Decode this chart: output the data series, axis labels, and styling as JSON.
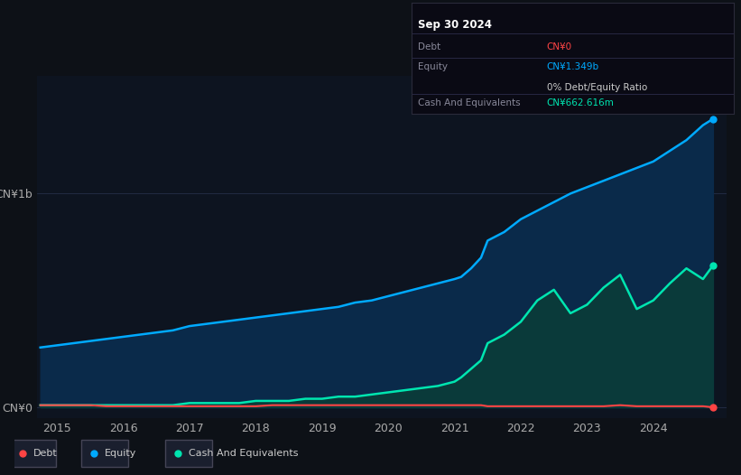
{
  "bg_color": "#0d1117",
  "plot_bg_color": "#0d1420",
  "title_text": "Sep 30 2024",
  "ylabel_top": "CN¥1b",
  "ylabel_bottom": "CN¥0",
  "x_ticks": [
    2015,
    2016,
    2017,
    2018,
    2019,
    2020,
    2021,
    2022,
    2023,
    2024
  ],
  "debt_color": "#ff4444",
  "equity_color": "#00aaff",
  "cash_color": "#00e5b0",
  "equity_fill_color": "#0a2a4a",
  "cash_fill_color": "#0a3a3a",
  "legend_labels": [
    "Debt",
    "Equity",
    "Cash And Equivalents"
  ],
  "tooltip": {
    "title": "Sep 30 2024",
    "debt_label": "Debt",
    "debt_value": "CN¥0",
    "equity_label": "Equity",
    "equity_value": "CN¥1.349b",
    "ratio_value": "0% Debt/Equity Ratio",
    "cash_label": "Cash And Equivalents",
    "cash_value": "CN¥662.616m"
  },
  "years": [
    2014.75,
    2015.0,
    2015.25,
    2015.5,
    2015.75,
    2016.0,
    2016.25,
    2016.5,
    2016.75,
    2017.0,
    2017.25,
    2017.5,
    2017.75,
    2018.0,
    2018.25,
    2018.5,
    2018.75,
    2019.0,
    2019.25,
    2019.5,
    2019.75,
    2020.0,
    2020.25,
    2020.5,
    2020.75,
    2021.0,
    2021.1,
    2021.25,
    2021.4,
    2021.5,
    2021.75,
    2022.0,
    2022.25,
    2022.5,
    2022.75,
    2023.0,
    2023.25,
    2023.5,
    2023.75,
    2024.0,
    2024.25,
    2024.5,
    2024.75,
    2024.9
  ],
  "equity": [
    0.28,
    0.29,
    0.3,
    0.31,
    0.32,
    0.33,
    0.34,
    0.35,
    0.36,
    0.38,
    0.39,
    0.4,
    0.41,
    0.42,
    0.43,
    0.44,
    0.45,
    0.46,
    0.47,
    0.49,
    0.5,
    0.52,
    0.54,
    0.56,
    0.58,
    0.6,
    0.61,
    0.65,
    0.7,
    0.78,
    0.82,
    0.88,
    0.92,
    0.96,
    1.0,
    1.03,
    1.06,
    1.09,
    1.12,
    1.15,
    1.2,
    1.25,
    1.32,
    1.349
  ],
  "cash": [
    0.01,
    0.01,
    0.01,
    0.01,
    0.01,
    0.01,
    0.01,
    0.01,
    0.01,
    0.02,
    0.02,
    0.02,
    0.02,
    0.03,
    0.03,
    0.03,
    0.04,
    0.04,
    0.05,
    0.05,
    0.06,
    0.07,
    0.08,
    0.09,
    0.1,
    0.12,
    0.14,
    0.18,
    0.22,
    0.3,
    0.34,
    0.4,
    0.5,
    0.55,
    0.44,
    0.48,
    0.56,
    0.62,
    0.46,
    0.5,
    0.58,
    0.65,
    0.6,
    0.663
  ],
  "debt": [
    0.01,
    0.01,
    0.01,
    0.01,
    0.005,
    0.005,
    0.005,
    0.005,
    0.005,
    0.005,
    0.005,
    0.005,
    0.005,
    0.005,
    0.01,
    0.01,
    0.01,
    0.01,
    0.01,
    0.01,
    0.01,
    0.01,
    0.01,
    0.01,
    0.01,
    0.01,
    0.01,
    0.01,
    0.01,
    0.005,
    0.005,
    0.005,
    0.005,
    0.005,
    0.005,
    0.005,
    0.005,
    0.01,
    0.005,
    0.005,
    0.005,
    0.005,
    0.005,
    0.0
  ]
}
